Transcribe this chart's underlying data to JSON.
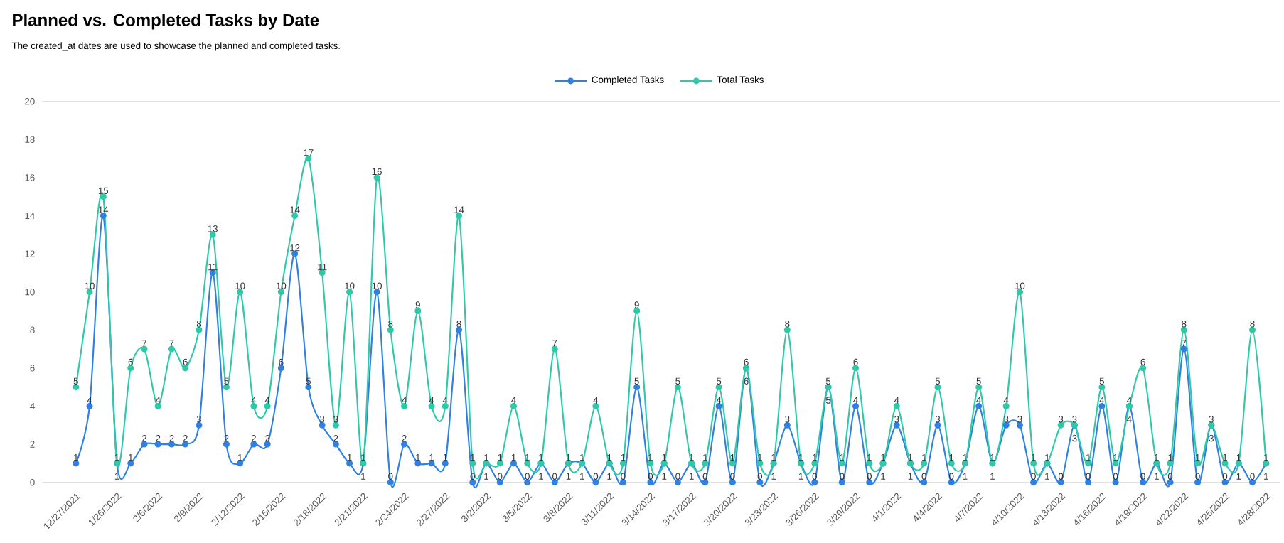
{
  "chart_data": {
    "type": "line",
    "title": "Planned vs. Completed Tasks by Date",
    "subtitle": "The created_at dates are used to showcase the planned and completed tasks.",
    "categories": [
      "12/27/2021",
      null,
      null,
      "1/26/2022",
      null,
      null,
      "2/6/2022",
      null,
      null,
      "2/9/2022",
      null,
      null,
      "2/12/2022",
      null,
      null,
      "2/15/2022",
      null,
      null,
      "2/18/2022",
      null,
      null,
      "2/21/2022",
      null,
      null,
      "2/24/2022",
      null,
      null,
      "2/27/2022",
      null,
      null,
      "3/2/2022",
      null,
      null,
      "3/5/2022",
      null,
      null,
      "3/8/2022",
      null,
      null,
      "3/11/2022",
      null,
      null,
      "3/14/2022",
      null,
      null,
      "3/17/2022",
      null,
      null,
      "3/20/2022",
      null,
      null,
      "3/23/2022",
      null,
      null,
      "3/26/2022",
      null,
      null,
      "3/29/2022",
      null,
      null,
      "4/1/2022",
      null,
      null,
      "4/4/2022",
      null,
      null,
      "4/7/2022",
      null,
      null,
      "4/10/2022",
      null,
      null,
      "4/13/2022",
      null,
      null,
      "4/16/2022",
      null,
      null,
      "4/19/2022",
      null,
      null,
      "4/22/2022",
      null,
      null,
      "4/25/2022",
      null,
      null,
      "4/28/2022"
    ],
    "series": [
      {
        "name": "Completed Tasks",
        "color": "#2f80e3",
        "values": [
          1,
          4,
          14,
          1,
          1,
          2,
          2,
          2,
          2,
          3,
          11,
          2,
          1,
          2,
          2,
          6,
          12,
          5,
          3,
          2,
          1,
          1,
          10,
          0,
          2,
          1,
          1,
          1,
          8,
          0,
          1,
          0,
          1,
          0,
          1,
          0,
          1,
          1,
          0,
          1,
          0,
          5,
          0,
          1,
          0,
          1,
          0,
          4,
          0,
          6,
          0,
          1,
          3,
          1,
          0,
          5,
          0,
          4,
          0,
          1,
          3,
          1,
          0,
          3,
          0,
          1,
          4,
          1,
          3,
          3,
          0,
          1,
          0,
          3,
          0,
          4,
          0,
          4,
          0,
          1,
          0,
          7,
          0,
          3,
          0,
          1,
          0,
          1
        ]
      },
      {
        "name": "Total Tasks",
        "color": "#2ec9a8",
        "values": [
          5,
          10,
          15,
          1,
          6,
          7,
          4,
          7,
          6,
          8,
          13,
          5,
          10,
          4,
          4,
          10,
          14,
          17,
          11,
          3,
          10,
          1,
          16,
          8,
          4,
          9,
          4,
          4,
          14,
          1,
          1,
          1,
          4,
          1,
          1,
          7,
          1,
          1,
          4,
          1,
          1,
          9,
          1,
          1,
          5,
          1,
          1,
          5,
          1,
          6,
          1,
          1,
          8,
          1,
          1,
          5,
          1,
          6,
          1,
          1,
          4,
          1,
          1,
          5,
          1,
          1,
          5,
          1,
          4,
          10,
          1,
          1,
          3,
          3,
          1,
          5,
          1,
          4,
          6,
          1,
          1,
          8,
          1,
          3,
          1,
          1,
          8,
          1
        ]
      }
    ],
    "ylim": [
      0,
      20
    ],
    "yticks": [
      0,
      2,
      4,
      6,
      8,
      10,
      12,
      14,
      16,
      18,
      20
    ],
    "marker": "circle",
    "data_labels": true,
    "legend": "top",
    "grid": false
  }
}
